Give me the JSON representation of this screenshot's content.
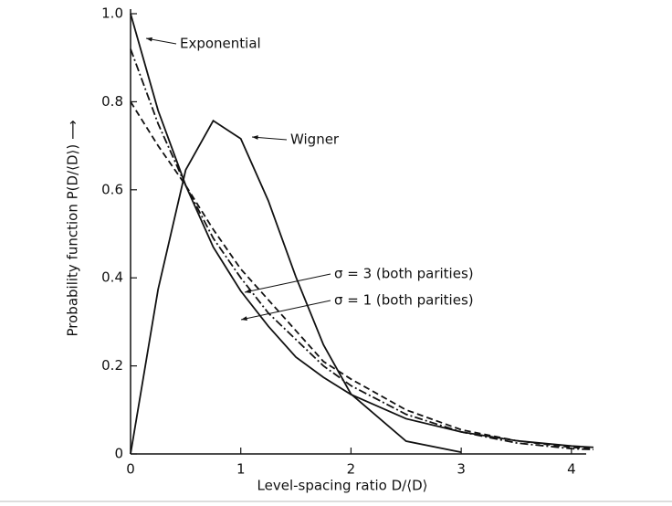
{
  "chart_data": {
    "type": "line",
    "x_label": "Level-spacing ratio D/⟨D⟩",
    "y_label": "Probability function P(D/⟨D⟩) ⟶",
    "x": [
      0,
      0.25,
      0.5,
      0.75,
      1,
      1.25,
      1.5,
      1.75,
      2,
      2.5,
      3,
      3.5,
      4,
      4.2
    ],
    "series": [
      {
        "name": "Exponential",
        "color": "#111111",
        "dash": "solid",
        "values": [
          1,
          0.78,
          0.61,
          0.47,
          0.37,
          0.29,
          0.22,
          0.174,
          0.135,
          0.08,
          0.05,
          0.03,
          0.018,
          0.015
        ]
      },
      {
        "name": "Wigner",
        "color": "#111111",
        "dash": "solid",
        "values": [
          0,
          0.374,
          0.645,
          0.757,
          0.716,
          0.575,
          0.402,
          0.248,
          0.136,
          0.029,
          0.004,
          null,
          null,
          null
        ]
      },
      {
        "name": "σ = 3 (both parities)",
        "color": "#111111",
        "dash": "dashdot",
        "values": [
          0.92,
          0.75,
          0.61,
          0.49,
          0.4,
          0.32,
          0.26,
          0.2,
          0.155,
          0.09,
          0.05,
          0.025,
          0.012,
          0.01
        ]
      },
      {
        "name": "σ = 1 (both parities)",
        "color": "#111111",
        "dash": "dashed",
        "values": [
          0.8,
          0.7,
          0.61,
          0.51,
          0.42,
          0.35,
          0.28,
          0.21,
          0.17,
          0.1,
          0.055,
          0.03,
          0.015,
          0.012
        ]
      }
    ],
    "xlim": [
      0,
      4.2
    ],
    "ylim": [
      0,
      1
    ],
    "xticks": [
      0,
      1,
      2,
      3,
      4
    ],
    "yticks": [
      0,
      0.2,
      0.4,
      0.6,
      0.8,
      {
        "value": 1,
        "label": "1.0"
      }
    ]
  }
}
